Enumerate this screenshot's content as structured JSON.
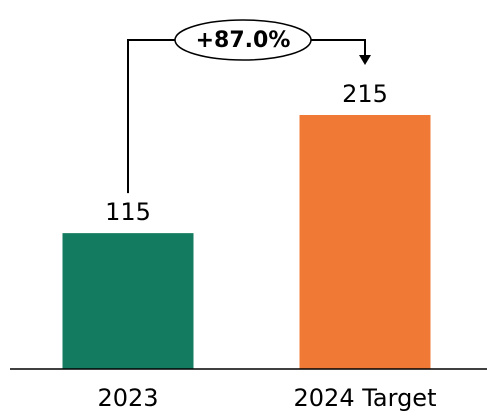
{
  "chart_data": {
    "type": "bar",
    "categories": [
      "2023",
      "2024 Target"
    ],
    "values": [
      115,
      215
    ],
    "colors": [
      "#137b5f",
      "#f07a35"
    ],
    "annotation": "+87.0%"
  }
}
